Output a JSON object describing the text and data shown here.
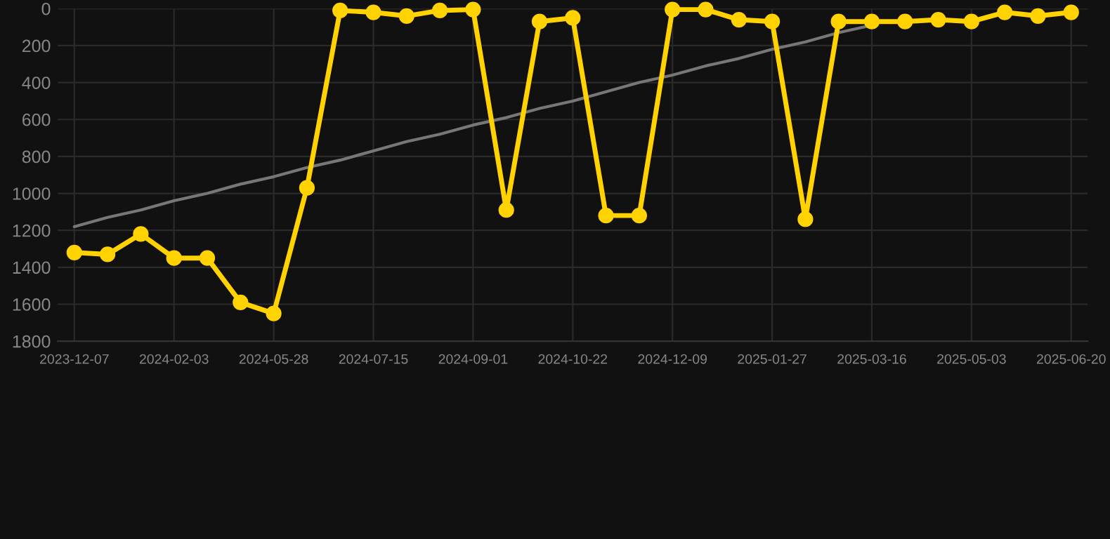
{
  "chart_data": {
    "type": "line",
    "categories": [
      "2023-12-07",
      null,
      null,
      "2024-02-03",
      null,
      null,
      "2024-05-28",
      null,
      null,
      "2024-07-15",
      null,
      null,
      "2024-09-01",
      null,
      null,
      "2024-10-22",
      null,
      null,
      "2024-12-09",
      null,
      null,
      "2025-01-27",
      null,
      null,
      "2025-03-16",
      null,
      null,
      "2025-05-03",
      null,
      null,
      "2025-06-20"
    ],
    "series": [
      {
        "color": "#ffd200",
        "marker": "circle",
        "values": [
          1320,
          1330,
          1220,
          1350,
          1350,
          1590,
          1650,
          970,
          10,
          20,
          40,
          10,
          5,
          1090,
          70,
          50,
          1120,
          1120,
          5,
          5,
          60,
          70,
          1140,
          70,
          70,
          70,
          60,
          70,
          20,
          40,
          20
        ]
      },
      {
        "type": "line",
        "color": "#777777",
        "values": [
          1180,
          1130,
          1090,
          1040,
          1000,
          950,
          910,
          860,
          820,
          770,
          720,
          680,
          630,
          590,
          540,
          500,
          450,
          400,
          360,
          310,
          270,
          220,
          180,
          130,
          90,
          null,
          null,
          null,
          null,
          null,
          null
        ]
      }
    ],
    "ylim": [
      1800,
      0
    ],
    "yticks": [
      0,
      200,
      400,
      600,
      800,
      1000,
      1200,
      1400,
      1600,
      1800
    ],
    "grid": true,
    "legend": false
  }
}
